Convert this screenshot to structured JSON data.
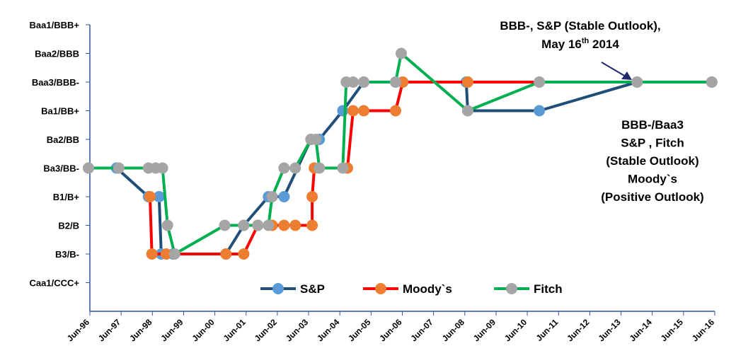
{
  "chart_data": {
    "type": "line",
    "annotations": [
      "BBB-, S&P (Stable Outlook),",
      "May 16",
      "th",
      " 2014"
    ],
    "annotation_2": [
      "BBB-/Baa3",
      "S&P , Fitch",
      "(Stable Outlook)",
      "Moody`s",
      "(Positive Outlook)"
    ],
    "xlim": [
      1996.5,
      2016.5
    ],
    "xticks": [
      {
        "value": 1996.5,
        "label": "Jun-96"
      },
      {
        "value": 1997.5,
        "label": "Jun-97"
      },
      {
        "value": 1998.5,
        "label": "Jun-98"
      },
      {
        "value": 1999.5,
        "label": "Jun-99"
      },
      {
        "value": 2000.5,
        "label": "Jun-00"
      },
      {
        "value": 2001.5,
        "label": "Jun-01"
      },
      {
        "value": 2002.5,
        "label": "Jun-02"
      },
      {
        "value": 2003.5,
        "label": "Jun-03"
      },
      {
        "value": 2004.5,
        "label": "Jun-04"
      },
      {
        "value": 2005.5,
        "label": "Jun-05"
      },
      {
        "value": 2006.5,
        "label": "Jun-06"
      },
      {
        "value": 2007.5,
        "label": "Jun-07"
      },
      {
        "value": 2008.5,
        "label": "Jun-08"
      },
      {
        "value": 2009.5,
        "label": "Jun-09"
      },
      {
        "value": 2010.5,
        "label": "Jun-10"
      },
      {
        "value": 2011.5,
        "label": "Jun-11"
      },
      {
        "value": 2012.5,
        "label": "Jun-12"
      },
      {
        "value": 2013.5,
        "label": "Jun-13"
      },
      {
        "value": 2014.5,
        "label": "Jun-14"
      },
      {
        "value": 2015.5,
        "label": "Jun-15"
      },
      {
        "value": 2016.5,
        "label": "Jun-16"
      }
    ],
    "ylim": [
      0,
      10
    ],
    "yticks": [
      {
        "value": 1,
        "label": "Caa1/CCC+"
      },
      {
        "value": 2,
        "label": "B3/B-"
      },
      {
        "value": 3,
        "label": "B2/B"
      },
      {
        "value": 4,
        "label": "B1/B+"
      },
      {
        "value": 5,
        "label": "Ba3/BB-"
      },
      {
        "value": 6,
        "label": "Ba2/BB"
      },
      {
        "value": 7,
        "label": "Ba1/BB+"
      },
      {
        "value": 8,
        "label": "Baa3/BBB-"
      },
      {
        "value": 9,
        "label": "Baa2/BBB"
      },
      {
        "value": 10,
        "label": "Baa1/BBB+"
      }
    ],
    "grid": false,
    "legend": "bottom",
    "series": [
      {
        "name": "S&P",
        "color": "#1f4e79",
        "marker_color": "#5b9bd5",
        "x": [
          1996.5,
          1997.4,
          1998.42,
          1998.76,
          1998.83,
          1999.21,
          2000.9,
          2001.47,
          2002.26,
          2002.76,
          2003.62,
          2003.89,
          2004.64,
          2005.31,
          2006.33,
          2006.56,
          2008.59,
          2008.64,
          2010.93,
          2014.06,
          2016.45
        ],
        "values": [
          5,
          5,
          4,
          4,
          2,
          2,
          2,
          3,
          4,
          4,
          6,
          6,
          7,
          8,
          8,
          8,
          8,
          7,
          7,
          8,
          8
        ]
      },
      {
        "name": "Moody`s",
        "color": "#ff0000",
        "marker_color": "#ed7d31",
        "x": [
          1998.47,
          1998.53,
          1998.99,
          2000.9,
          2001.47,
          2001.92,
          2002.38,
          2002.76,
          2003.12,
          2003.66,
          2003.66,
          2003.73,
          2004.79,
          2004.97,
          2005.31,
          2006.33,
          2006.56,
          2008.64,
          2010.93,
          2014.06,
          2016.45
        ],
        "values": [
          4,
          2,
          2,
          2,
          2,
          3,
          3,
          3,
          3,
          3,
          4,
          5,
          5,
          7,
          7,
          7,
          8,
          8,
          8,
          8,
          8
        ]
      },
      {
        "name": "Fitch",
        "color": "#00b050",
        "marker_color": "#a5a5a5",
        "x": [
          1996.5,
          1997.47,
          1998.42,
          1998.65,
          1998.87,
          1999.03,
          1999.26,
          2000.86,
          2001.47,
          2001.92,
          2002.26,
          2002.38,
          2002.76,
          2003.12,
          2003.62,
          2003.78,
          2003.89,
          2004.64,
          2004.75,
          2004.97,
          2005.31,
          2006.33,
          2006.51,
          2008.64,
          2010.93,
          2014.06,
          2016.45
        ],
        "values": [
          5,
          5,
          5,
          5,
          5,
          3,
          2,
          3,
          3,
          3,
          3,
          4,
          5,
          5,
          6,
          6,
          5,
          5,
          8,
          8,
          8,
          8,
          9,
          7,
          8,
          8,
          8
        ]
      }
    ]
  }
}
